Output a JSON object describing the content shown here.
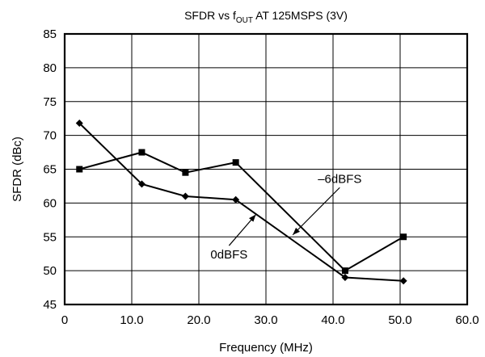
{
  "chart_data": {
    "type": "line",
    "title": {
      "prefix": "SFDR vs f",
      "subscript": "OUT",
      "suffix": " AT 125MSPS (3V)"
    },
    "xlabel": "Frequency (MHz)",
    "ylabel": "SFDR (dBc)",
    "xlim": [
      0,
      60
    ],
    "ylim": [
      45,
      85
    ],
    "x_ticks": [
      0,
      10,
      20,
      30,
      40,
      50,
      60
    ],
    "x_tick_labels": [
      "0",
      "10.0",
      "20.0",
      "30.0",
      "40.0",
      "50.0",
      "60.0"
    ],
    "y_ticks": [
      45,
      50,
      55,
      60,
      65,
      70,
      75,
      80,
      85
    ],
    "y_tick_labels": [
      "45",
      "50",
      "55",
      "60",
      "65",
      "70",
      "75",
      "80",
      "85"
    ],
    "grid": true,
    "series": [
      {
        "name": "0dBFS",
        "marker": "diamond",
        "x": [
          2.2,
          11.5,
          18.0,
          25.5,
          41.8,
          50.5
        ],
        "y": [
          71.8,
          62.8,
          61.0,
          60.5,
          49.0,
          48.5
        ]
      },
      {
        "name": "-6dBFS",
        "marker": "square",
        "x": [
          2.2,
          11.5,
          18.0,
          25.5,
          41.8,
          50.5
        ],
        "y": [
          65.0,
          67.5,
          64.5,
          66.0,
          50.0,
          55.0
        ]
      }
    ],
    "annotations": [
      {
        "text": "–6dBFS",
        "x": 41.0,
        "y": 63.0,
        "arrow_to_x": 34.0,
        "arrow_to_y": 55.3
      },
      {
        "text": "0dBFS",
        "x": 24.5,
        "y": 51.8,
        "arrow_to_x": 28.5,
        "arrow_to_y": 58.3
      }
    ]
  }
}
